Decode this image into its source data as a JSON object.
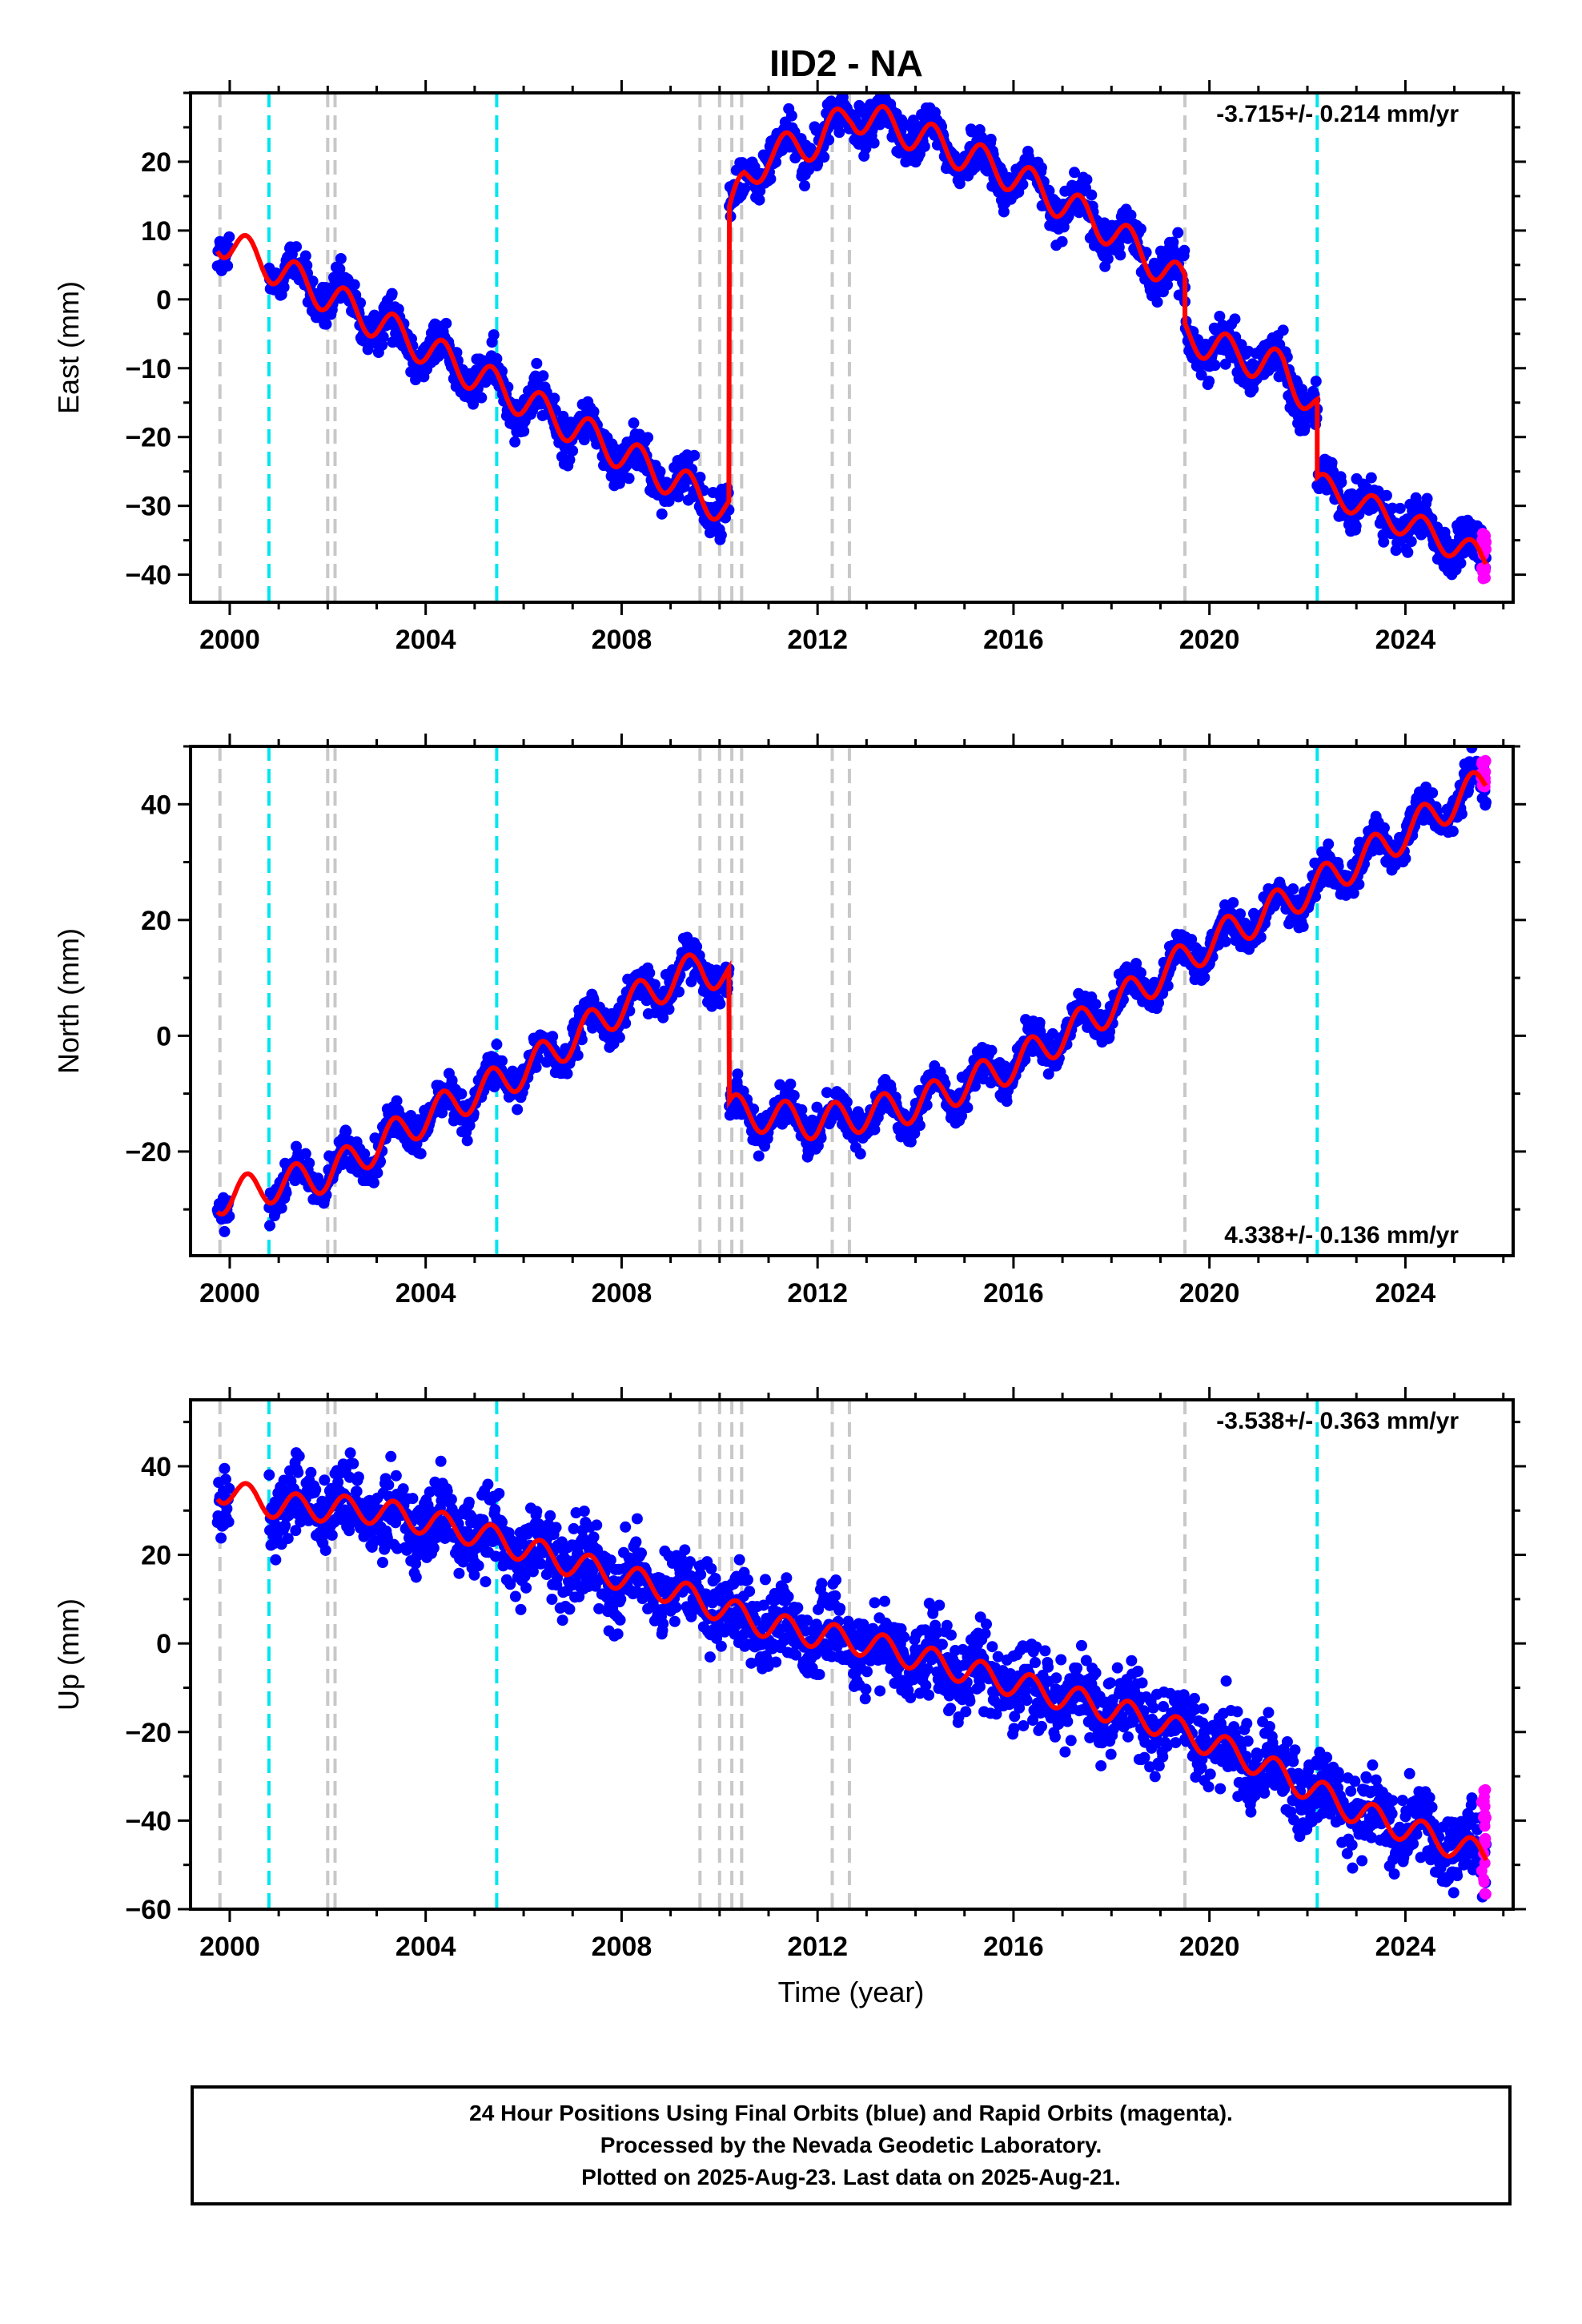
{
  "chart_data": [
    {
      "type": "scatter",
      "title": "IID2 - NA",
      "ylabel": "East (mm)",
      "xlabel": "",
      "xlim": [
        1999.2,
        2026.2
      ],
      "ylim": [
        -44,
        30
      ],
      "xticks": [
        2000,
        2004,
        2008,
        2012,
        2016,
        2020,
        2024
      ],
      "yticks": [
        -40,
        -30,
        -20,
        -10,
        0,
        10,
        20
      ],
      "velocity_label": "-3.715+/- 0.214 mm/yr",
      "velocity_position": "top-right",
      "equipment_changes": [
        1999.8,
        2002.0,
        2002.15,
        2009.6,
        2010.0,
        2010.25,
        2010.45,
        2012.3,
        2012.65,
        2019.5
      ],
      "earthquakes": [
        2000.8,
        2005.45,
        2022.2
      ],
      "model_segments": [
        {
          "x0": 1999.75,
          "x1": 2010.2,
          "offset": 17,
          "amp": 2.5,
          "t0": 1999.75,
          "vel": -3.8
        },
        {
          "x0": 2010.2,
          "x1": 2019.5,
          "pts": [
            [
              2010.2,
              12
            ],
            [
              2010.5,
              17
            ],
            [
              2011.0,
              21
            ],
            [
              2012.0,
              23
            ],
            [
              2012.7,
              27
            ],
            [
              2014.0,
              24
            ],
            [
              2016.0,
              18
            ],
            [
              2018.0,
              10
            ],
            [
              2019.5,
              2
            ]
          ],
          "amp": 2.5
        },
        {
          "x0": 2019.5,
          "x1": 2022.2,
          "pts": [
            [
              2019.5,
              -5
            ],
            [
              2020.5,
              -8
            ],
            [
              2021.5,
              -10
            ],
            [
              2022.2,
              -16
            ]
          ],
          "amp": 2.5
        },
        {
          "x0": 2022.2,
          "x1": 2025.65,
          "pts": [
            [
              2022.2,
              -27
            ],
            [
              2023.5,
              -31
            ],
            [
              2024.5,
              -34
            ],
            [
              2025.65,
              -38
            ]
          ],
          "amp": 2.0
        }
      ],
      "rapid_last_range": [
        -41,
        -34
      ],
      "series": [
        {
          "name": "Final Orbits",
          "color": "#0000ff"
        },
        {
          "name": "Rapid Orbits",
          "color": "#ff00ff"
        },
        {
          "name": "Model",
          "color": "#ff0000"
        }
      ]
    },
    {
      "type": "scatter",
      "title": "",
      "ylabel": "North (mm)",
      "xlabel": "",
      "xlim": [
        1999.2,
        2026.2
      ],
      "ylim": [
        -38,
        50
      ],
      "xticks": [
        2000,
        2004,
        2008,
        2012,
        2016,
        2020,
        2024
      ],
      "yticks": [
        -20,
        0,
        20,
        40
      ],
      "velocity_label": "4.338+/- 0.136 mm/yr",
      "velocity_position": "bottom-right",
      "equipment_changes": [
        1999.8,
        2002.0,
        2002.15,
        2009.6,
        2010.0,
        2010.25,
        2010.45,
        2012.3,
        2012.65,
        2019.5
      ],
      "earthquakes": [
        2000.8,
        2005.45,
        2022.2
      ],
      "model_segments": [
        {
          "x0": 1999.75,
          "x1": 2010.2,
          "pts": [
            [
              1999.75,
              -28
            ],
            [
              2000.8,
              -26
            ],
            [
              2002.0,
              -24
            ],
            [
              2004.0,
              -14
            ],
            [
              2006.0,
              -6
            ],
            [
              2008.0,
              5
            ],
            [
              2009.6,
              12
            ],
            [
              2010.2,
              10
            ]
          ],
          "amp": 3.0
        },
        {
          "x0": 2010.2,
          "x1": 2025.65,
          "pts": [
            [
              2010.2,
              -13
            ],
            [
              2012.0,
              -15
            ],
            [
              2014.0,
              -12
            ],
            [
              2016.0,
              -5
            ],
            [
              2018.0,
              5
            ],
            [
              2020.0,
              16
            ],
            [
              2022.2,
              26
            ],
            [
              2024.0,
              35
            ],
            [
              2025.65,
              44
            ]
          ],
          "amp": 3.0
        }
      ],
      "rapid_last_range": [
        42,
        48
      ],
      "series": [
        {
          "name": "Final Orbits",
          "color": "#0000ff"
        },
        {
          "name": "Rapid Orbits",
          "color": "#ff00ff"
        },
        {
          "name": "Model",
          "color": "#ff0000"
        }
      ]
    },
    {
      "type": "scatter",
      "title": "",
      "ylabel": "Up (mm)",
      "xlabel": "Time (year)",
      "xlim": [
        1999.2,
        2026.2
      ],
      "ylim": [
        -60,
        55
      ],
      "xticks": [
        2000,
        2004,
        2008,
        2012,
        2016,
        2020,
        2024
      ],
      "yticks": [
        -60,
        -40,
        -20,
        0,
        20,
        40
      ],
      "velocity_label": "-3.538+/- 0.363 mm/yr",
      "velocity_position": "top-right",
      "equipment_changes": [
        1999.8,
        2002.0,
        2002.15,
        2009.6,
        2010.0,
        2010.25,
        2010.45,
        2012.3,
        2012.65,
        2019.5
      ],
      "earthquakes": [
        2000.8,
        2005.45,
        2022.2
      ],
      "model_segments": [
        {
          "x0": 1999.75,
          "x1": 2025.65,
          "pts": [
            [
              1999.75,
              35
            ],
            [
              2001.0,
              31
            ],
            [
              2003.0,
              30
            ],
            [
              2005.0,
              25
            ],
            [
              2007.0,
              18
            ],
            [
              2009.0,
              12
            ],
            [
              2011.0,
              4
            ],
            [
              2013.0,
              0
            ],
            [
              2015.0,
              -6
            ],
            [
              2017.0,
              -12
            ],
            [
              2019.0,
              -18
            ],
            [
              2021.0,
              -27
            ],
            [
              2023.0,
              -38
            ],
            [
              2025.65,
              -48
            ]
          ],
          "amp": 3.0
        }
      ],
      "rapid_last_range": [
        -57,
        -33
      ],
      "series": [
        {
          "name": "Final Orbits",
          "color": "#0000ff"
        },
        {
          "name": "Rapid Orbits",
          "color": "#ff00ff"
        },
        {
          "name": "Model",
          "color": "#ff0000"
        }
      ]
    }
  ],
  "footer": {
    "line1": "24 Hour Positions Using Final Orbits (blue) and Rapid Orbits (magenta).",
    "line2": "Processed by the Nevada Geodetic Laboratory.",
    "line3": "Plotted on 2025-Aug-23. Last data on 2025-Aug-21."
  },
  "colors": {
    "final": "#0000ff",
    "rapid": "#ff00ff",
    "model": "#ff0000",
    "equipment": "#c8c8c8",
    "earthquake": "#00e5ee"
  }
}
